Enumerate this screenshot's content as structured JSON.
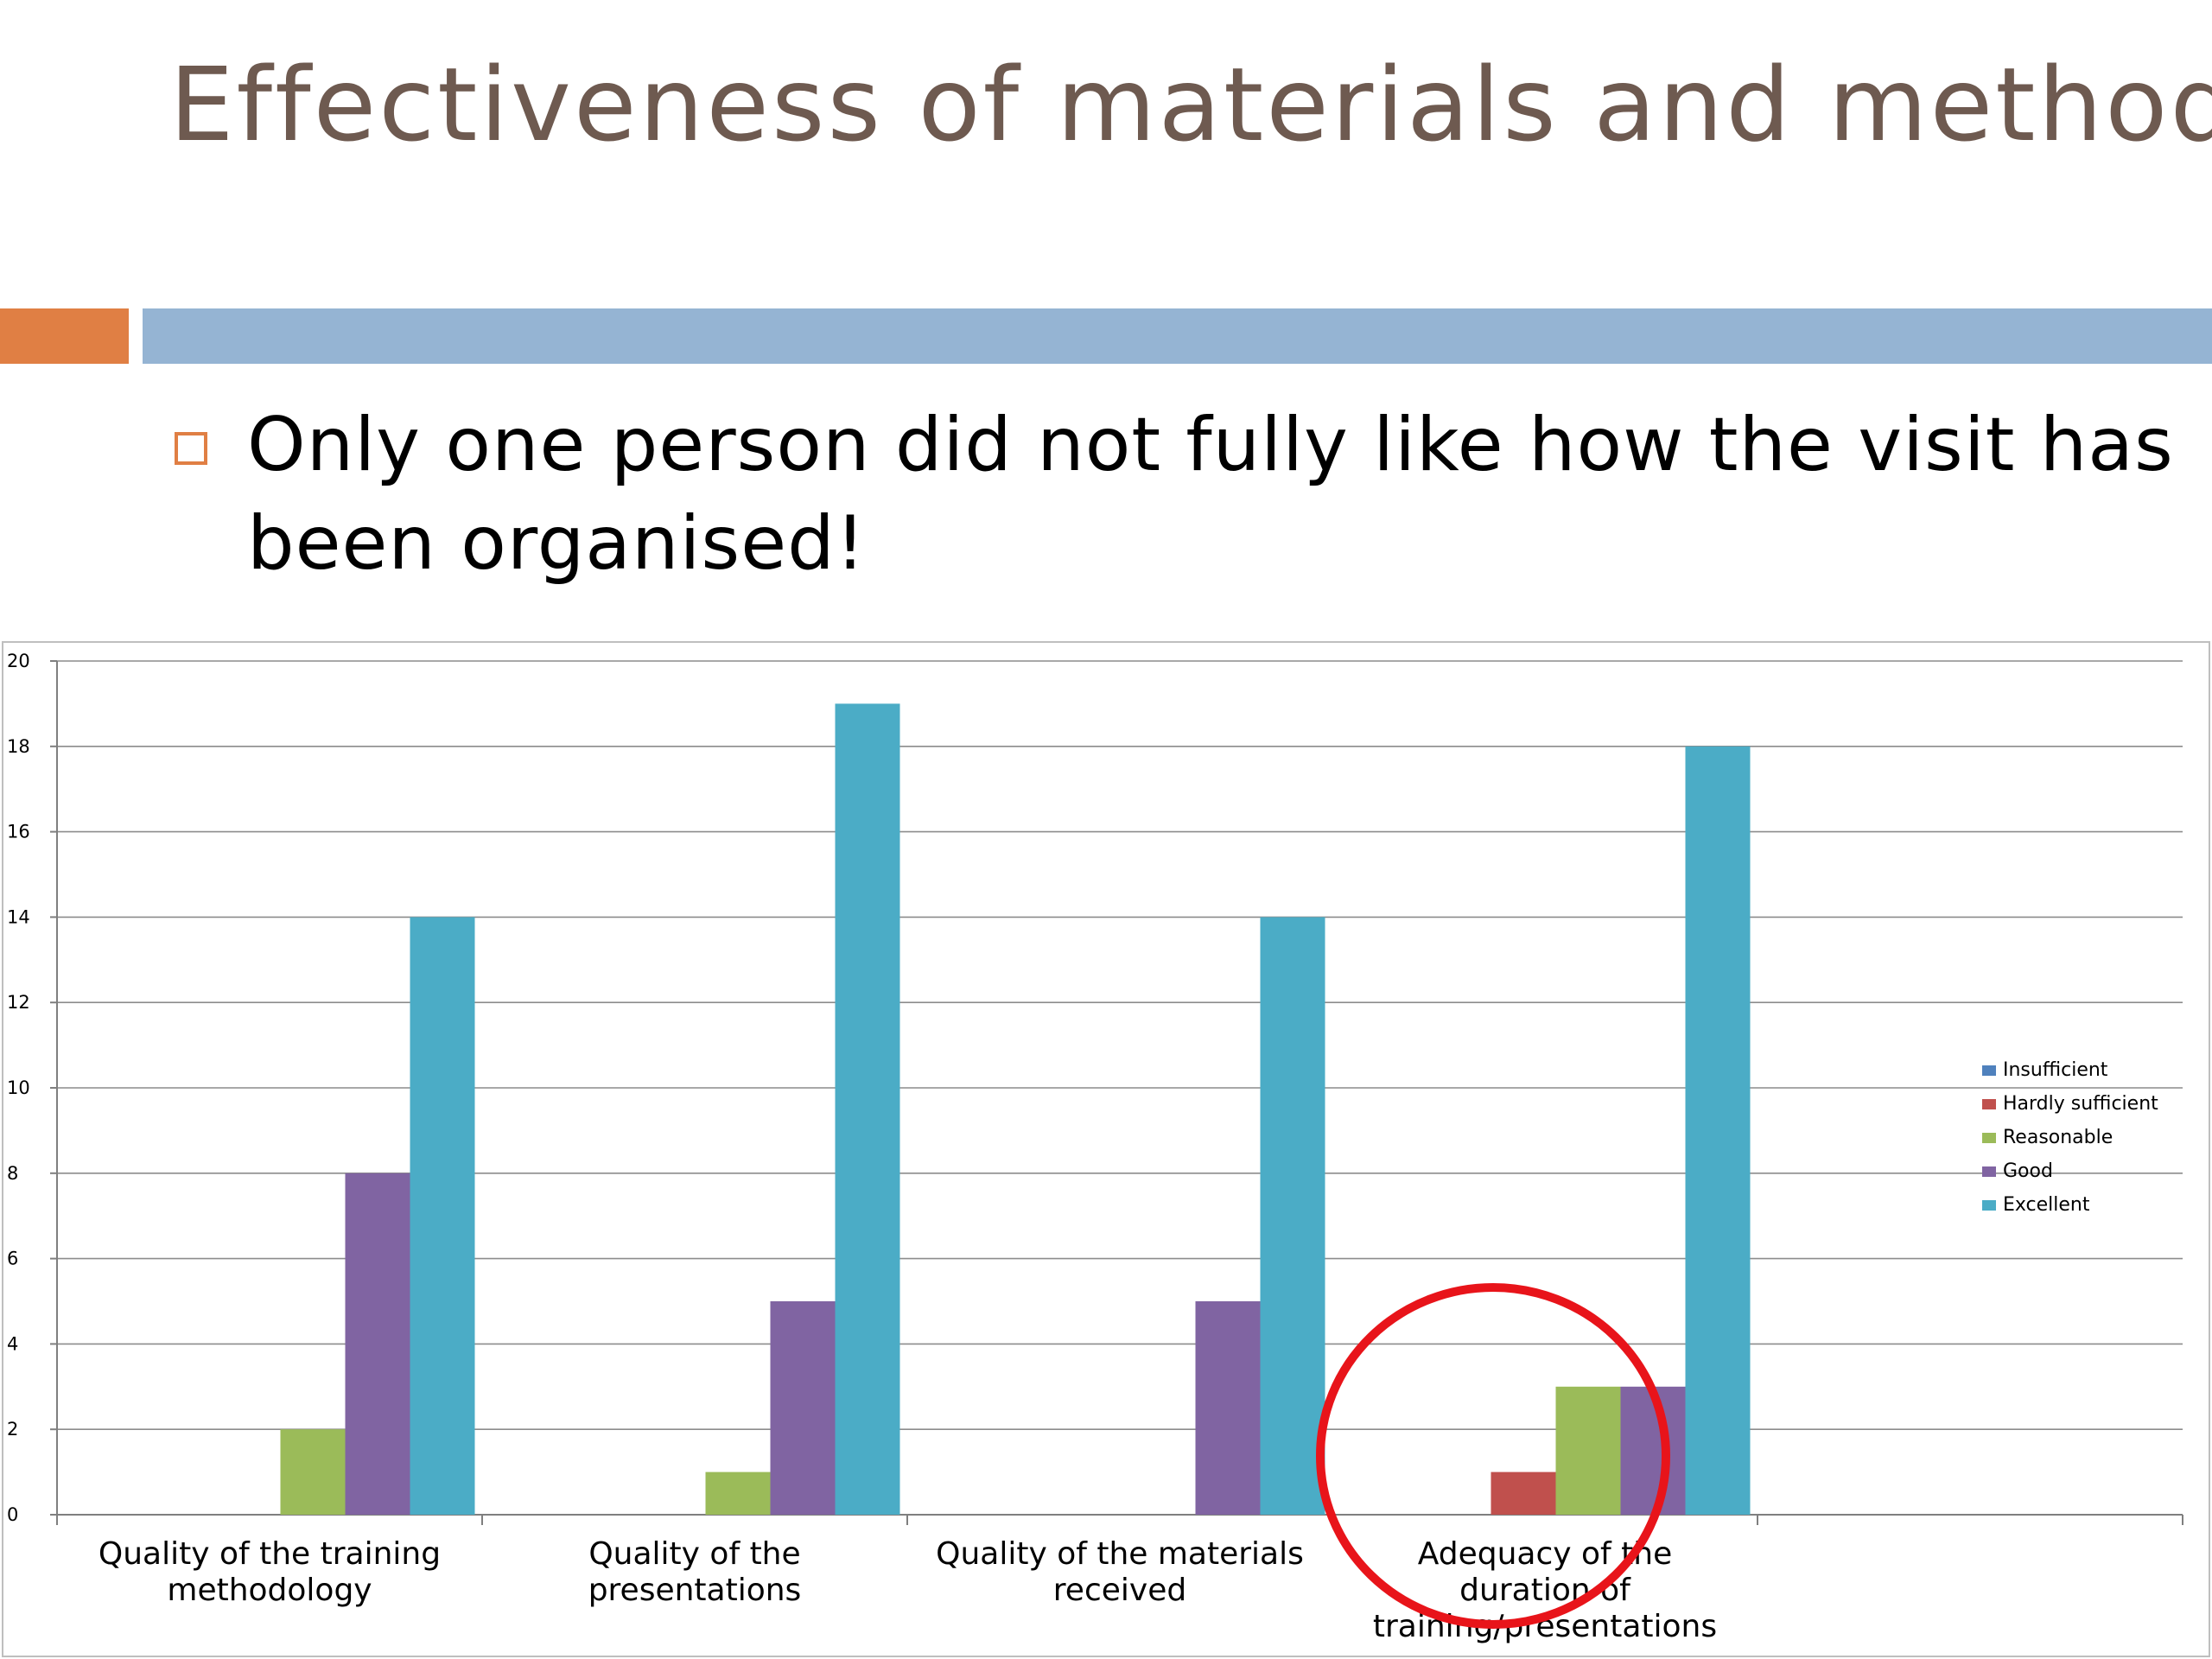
{
  "slide": {
    "title": "Effectiveness of materials and methods",
    "bullet": "Only one person did not fully like how the visit has been organised!"
  },
  "colors": {
    "title": "#6e5a50",
    "accent_orange": "#e07f44",
    "accent_blue": "#95b4d3",
    "highlight_circle": "#e8141a"
  },
  "chart_data": {
    "type": "bar",
    "title": "",
    "xlabel": "",
    "ylabel": "",
    "ylim": [
      0,
      20
    ],
    "yticks": [
      0,
      2,
      4,
      6,
      8,
      10,
      12,
      14,
      16,
      18,
      20
    ],
    "grid": true,
    "legend_position": "right",
    "categories": [
      [
        "Quality of the training",
        "methodology"
      ],
      [
        "Quality of the",
        "presentations"
      ],
      [
        "Quality of the materials",
        "received"
      ],
      [
        "Adequacy of the",
        "duration of",
        "training/presentations"
      ]
    ],
    "series": [
      {
        "name": "Insufficient",
        "color": "#4f81bd",
        "values": [
          0,
          0,
          0,
          0
        ]
      },
      {
        "name": "Hardly sufficient",
        "color": "#c0504d",
        "values": [
          0,
          0,
          0,
          1
        ]
      },
      {
        "name": "Reasonable",
        "color": "#9bbb59",
        "values": [
          2,
          1,
          0,
          3
        ]
      },
      {
        "name": "Good",
        "color": "#8064a2",
        "values": [
          8,
          5,
          5,
          3
        ]
      },
      {
        "name": "Excellent",
        "color": "#4bacc6",
        "values": [
          14,
          19,
          14,
          18
        ]
      }
    ],
    "annotation": "red circle around the fourth category group"
  }
}
